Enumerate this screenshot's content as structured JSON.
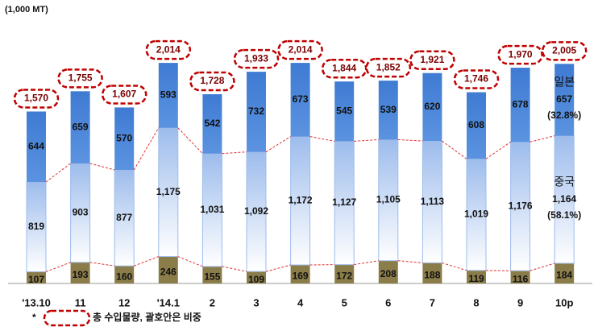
{
  "chart_data": {
    "type": "stacked-bar",
    "unit_label": "(1,000 MT)",
    "categories": [
      "'13.10",
      "11",
      "12",
      "'14.1",
      "2",
      "3",
      "4",
      "5",
      "6",
      "7",
      "8",
      "9",
      "10p"
    ],
    "series": [
      {
        "color": "#8b7d4a",
        "values": [
          107,
          193,
          160,
          246,
          155,
          109,
          169,
          172,
          208,
          188,
          119,
          116,
          184
        ]
      },
      {
        "name": "중국",
        "color": "#9dbcec",
        "note": "(58.1%)",
        "values": [
          819,
          903,
          877,
          1175,
          1031,
          1092,
          1172,
          1127,
          1105,
          1113,
          1019,
          1176,
          1164
        ],
        "value_labels": [
          "819",
          "903",
          "877",
          "1,175",
          "1,031",
          "1,092",
          "1,172",
          "1,127",
          "1,105",
          "1,113",
          "1,019",
          "1,176",
          "1,164"
        ]
      },
      {
        "name": "일본",
        "color": "#4a86d8",
        "note": "(32.8%)",
        "values": [
          644,
          659,
          570,
          593,
          542,
          732,
          673,
          545,
          539,
          620,
          608,
          678,
          657
        ]
      }
    ],
    "totals": [
      1570,
      1755,
      1607,
      2014,
      1728,
      1933,
      2014,
      1844,
      1852,
      1921,
      1746,
      1970,
      2005
    ],
    "totals_labels": [
      "1,570",
      "1,755",
      "1,607",
      "2,014",
      "1,728",
      "1,933",
      "2,014",
      "1,844",
      "1,852",
      "1,921",
      "1,746",
      "1,970",
      "2,005"
    ],
    "footnote_mark": "*",
    "footnote": "총 수입물량, 괄호안은 비중"
  }
}
